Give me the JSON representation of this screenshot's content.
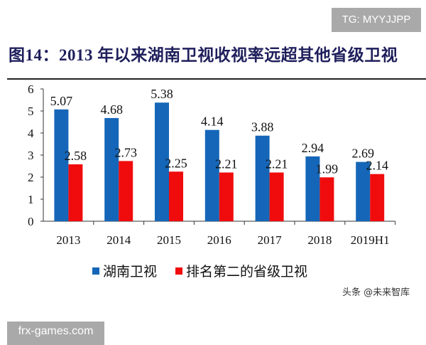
{
  "watermark_top": "TG: MYYJJPP",
  "watermark_bottom": "frx-games.com",
  "credit": "头条 @未来智库",
  "colors": {
    "series1": "#1566b8",
    "series2": "#f00c0c",
    "title": "#1f1f5c"
  },
  "chart_data": {
    "type": "bar",
    "title": "图14：2013 年以来湖南卫视收视率远超其他省级卫视",
    "xlabel": "",
    "ylabel": "",
    "ylim": [
      0,
      6
    ],
    "yticks": [
      "0",
      "1",
      "2",
      "3",
      "4",
      "5",
      "6"
    ],
    "grid": false,
    "legend_position": "bottom",
    "categories": [
      "2013",
      "2014",
      "2015",
      "2016",
      "2017",
      "2018",
      "2019H1"
    ],
    "series": [
      {
        "name": "湖南卫视",
        "values": [
          5.07,
          4.68,
          5.38,
          4.14,
          3.88,
          2.94,
          2.69
        ],
        "labels": [
          "5.07",
          "4.68",
          "5.38",
          "4.14",
          "3.88",
          "2.94",
          "2.69"
        ]
      },
      {
        "name": "排名第二的省级卫视",
        "values": [
          2.58,
          2.73,
          2.25,
          2.21,
          2.21,
          1.99,
          2.14
        ],
        "labels": [
          "2.58",
          "2.73",
          "2.25",
          "2.21",
          "2.21",
          "1.99",
          "2.14"
        ]
      }
    ]
  }
}
